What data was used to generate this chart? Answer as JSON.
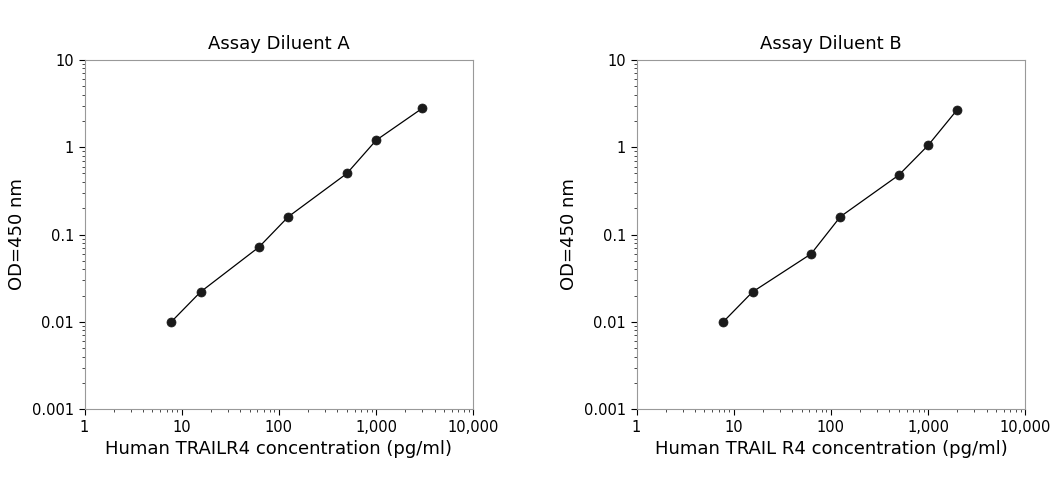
{
  "plot_A": {
    "title": "Assay Diluent A",
    "xlabel": "Human TRAILR4 concentration (pg/ml)",
    "ylabel": "OD=450 nm",
    "x": [
      7.8,
      15.6,
      62.5,
      125,
      500,
      1000,
      3000
    ],
    "y": [
      0.01,
      0.022,
      0.072,
      0.16,
      0.5,
      1.2,
      2.8
    ],
    "xlim": [
      1,
      10000
    ],
    "ylim": [
      0.001,
      10
    ]
  },
  "plot_B": {
    "title": "Assay Diluent B",
    "xlabel": "Human TRAIL R4 concentration (pg/ml)",
    "ylabel": "OD=450 nm",
    "x": [
      7.8,
      15.6,
      62.5,
      125,
      500,
      1000,
      2000
    ],
    "y": [
      0.01,
      0.022,
      0.06,
      0.16,
      0.48,
      1.05,
      2.7
    ],
    "xlim": [
      1,
      10000
    ],
    "ylim": [
      0.001,
      10
    ]
  },
  "line_color": "#000000",
  "marker_color": "#1a1a1a",
  "marker_size": 6.5,
  "title_fontsize": 13,
  "label_fontsize": 13,
  "tick_fontsize": 10.5,
  "spine_color": "#999999",
  "background_color": "#ffffff",
  "xticks": [
    1,
    10,
    100,
    1000,
    10000
  ],
  "xtick_labels": [
    "1",
    "10",
    "100",
    "1,000",
    "10,000"
  ],
  "yticks": [
    0.001,
    0.01,
    0.1,
    1,
    10
  ],
  "ytick_labels": [
    "0.001",
    "0.01",
    "0.1",
    "1",
    "10"
  ]
}
